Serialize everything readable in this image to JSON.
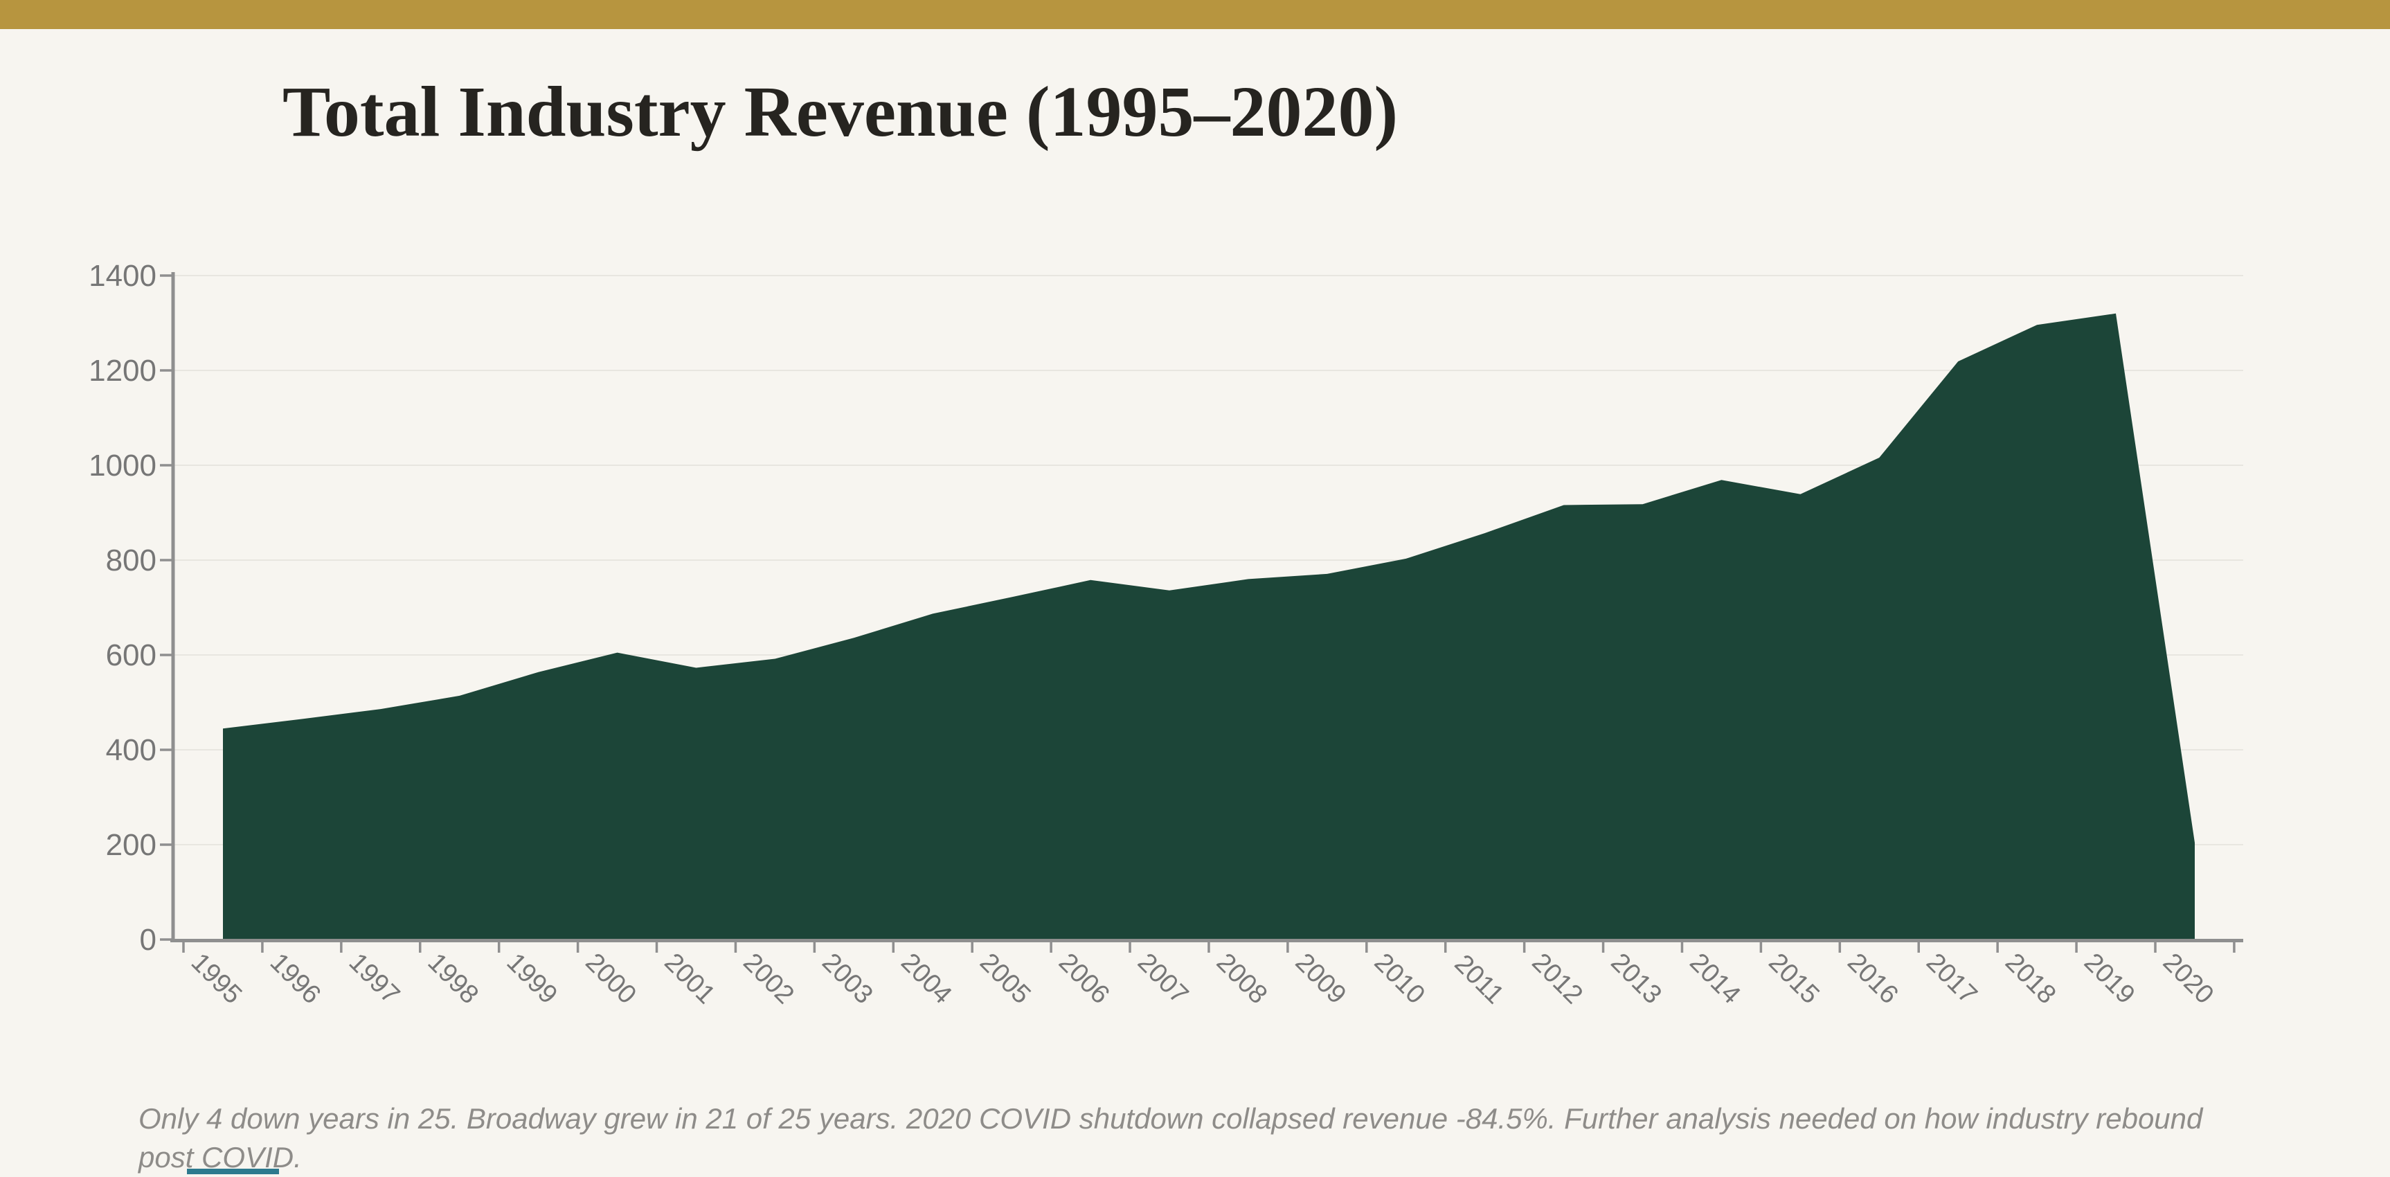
{
  "slide": {
    "title": "Total Industry Revenue (1995–2020)",
    "caption": "Only 4 down years in 25. Broadway grew in 21 of 25 years. 2020 COVID shutdown collapsed revenue -84.5%. Further analysis needed on how industry rebound post COVID.",
    "accent_bar_color": "#B7953F",
    "background_color": "#F7F5F0",
    "footer_accent_color": "#2D7A8E",
    "title_color": "#262420",
    "caption_color": "#8E8C89"
  },
  "chart_data": {
    "type": "area",
    "title": "Total Industry Revenue (1995–2020)",
    "series_name": "Total industry revenue",
    "categories": [
      1995,
      1996,
      1997,
      1998,
      1999,
      2000,
      2001,
      2002,
      2003,
      2004,
      2005,
      2006,
      2007,
      2008,
      2009,
      2010,
      2011,
      2012,
      2013,
      2014,
      2015,
      2016,
      2017,
      2018,
      2019,
      2020
    ],
    "values": [
      445,
      465,
      486,
      514,
      564,
      605,
      573,
      592,
      636,
      687,
      722,
      758,
      736,
      760,
      771,
      803,
      857,
      916,
      918,
      969,
      939,
      1016,
      1219,
      1296,
      1320,
      204
    ],
    "xlabel": "",
    "ylabel": "",
    "ylim": [
      0,
      1400
    ],
    "yticks": [
      0,
      200,
      400,
      600,
      800,
      1000,
      1200,
      1400
    ],
    "grid": true,
    "legend": false,
    "x_tick_label_rotation_deg": 45,
    "area_color": "#1C4538",
    "axis_color": "#8F8F8F",
    "tick_label_color": "#767676",
    "gridline_color": "#E8E6E0"
  }
}
